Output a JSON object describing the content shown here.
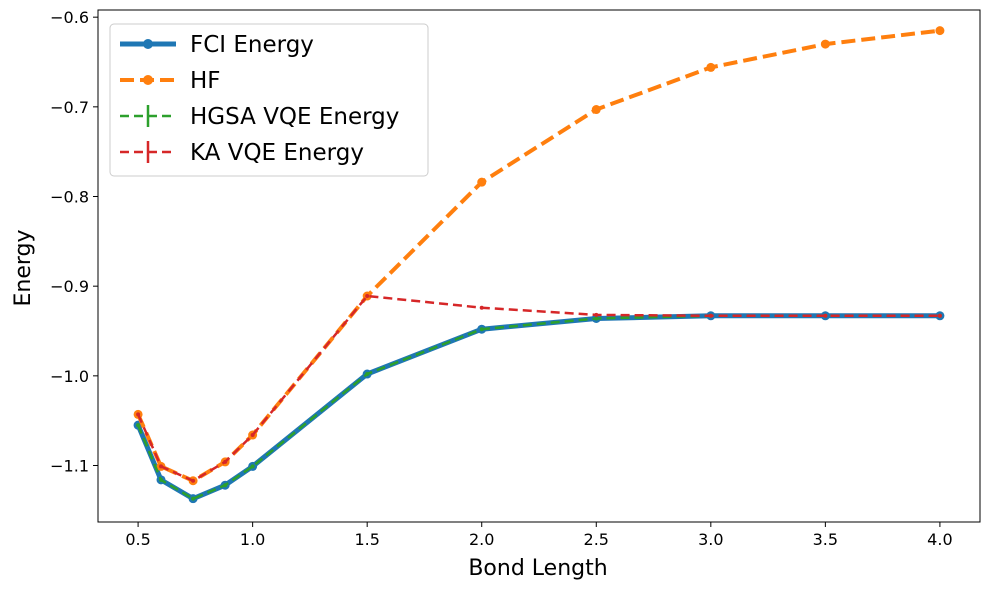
{
  "chart_data": {
    "type": "line",
    "xlabel": "Bond Length",
    "ylabel": "Energy",
    "xlim": [
      0.325,
      4.175
    ],
    "ylim": [
      -1.163,
      -0.592
    ],
    "x_ticks": [
      0.5,
      1.0,
      1.5,
      2.0,
      2.5,
      3.0,
      3.5,
      4.0
    ],
    "x_tick_labels": [
      "0.5",
      "1.0",
      "1.5",
      "2.0",
      "2.5",
      "3.0",
      "3.5",
      "4.0"
    ],
    "y_ticks": [
      -1.1,
      -1.0,
      -0.9,
      -0.8,
      -0.7,
      -0.6
    ],
    "y_tick_labels": [
      "−1.1",
      "−1.0",
      "−0.9",
      "−0.8",
      "−0.7",
      "−0.6"
    ],
    "legend_position": "top-left",
    "grid": false,
    "series": [
      {
        "name": "FCI Energy",
        "color": "#1f77b4",
        "style": "solid",
        "marker": "circle",
        "x": [
          0.5,
          0.6,
          0.74,
          0.88,
          1.0,
          1.5,
          2.0,
          2.5,
          3.0,
          3.5,
          4.0
        ],
        "y": [
          -1.055,
          -1.116,
          -1.137,
          -1.122,
          -1.101,
          -0.998,
          -0.948,
          -0.936,
          -0.933,
          -0.933,
          -0.933
        ]
      },
      {
        "name": "HF",
        "color": "#ff7f0e",
        "style": "dashed",
        "marker": "circle",
        "x": [
          0.5,
          0.6,
          0.74,
          0.88,
          1.0,
          1.5,
          2.0,
          2.5,
          3.0,
          3.5,
          4.0
        ],
        "y": [
          -1.043,
          -1.101,
          -1.117,
          -1.096,
          -1.066,
          -0.911,
          -0.784,
          -0.703,
          -0.656,
          -0.63,
          -0.615
        ]
      },
      {
        "name": "HGSA VQE Energy",
        "color": "#2ca02c",
        "style": "dashed",
        "marker": "errorbar",
        "x": [
          0.5,
          0.6,
          0.74,
          0.88,
          1.0,
          1.5,
          2.0,
          2.5,
          3.0,
          3.5,
          4.0
        ],
        "y": [
          -1.055,
          -1.116,
          -1.137,
          -1.122,
          -1.101,
          -0.998,
          -0.948,
          -0.936,
          -0.933,
          -0.933,
          -0.933
        ]
      },
      {
        "name": "KA VQE Energy",
        "color": "#d62728",
        "style": "dashed",
        "marker": "errorbar",
        "x": [
          0.5,
          0.6,
          0.74,
          0.88,
          1.0,
          1.5,
          2.0,
          2.5,
          3.0,
          3.5,
          4.0
        ],
        "y": [
          -1.043,
          -1.101,
          -1.117,
          -1.096,
          -1.066,
          -0.911,
          -0.924,
          -0.932,
          -0.933,
          -0.933,
          -0.933
        ]
      }
    ]
  }
}
